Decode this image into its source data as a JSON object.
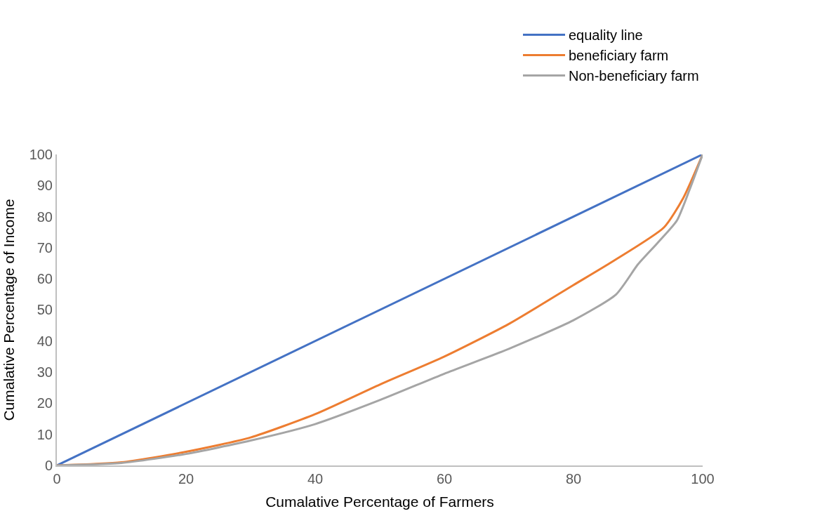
{
  "chart_data": {
    "type": "line",
    "xlabel": "Cumalative Percentage of Farmers",
    "ylabel": "Cumalative Percentage of Income",
    "xlim": [
      0,
      100
    ],
    "xticks": [
      0,
      20,
      40,
      60,
      80,
      100
    ],
    "ylim": [
      0,
      100
    ],
    "yticks": [
      0,
      10,
      20,
      30,
      40,
      50,
      60,
      70,
      80,
      90,
      100
    ],
    "grid": false,
    "legend": "top right",
    "marker": "none",
    "line_style": "solid",
    "series": [
      {
        "name": "equality line",
        "color": "#4472c4",
        "x": [
          0,
          100
        ],
        "values": [
          0,
          100
        ]
      },
      {
        "name": "beneficiary farm",
        "color": "#ed7d31",
        "x": [
          0,
          10,
          20,
          30,
          40,
          50,
          60,
          70,
          80,
          86,
          94,
          97,
          100
        ],
        "values": [
          0,
          1,
          4.4,
          9,
          16.5,
          26,
          35,
          45.5,
          58,
          65.5,
          76.5,
          86,
          100
        ]
      },
      {
        "name": "Non-beneficiary farm",
        "color": "#a5a5a5",
        "x": [
          0,
          10,
          20,
          30,
          40,
          50,
          60,
          70,
          80,
          86.6,
          90,
          93,
          96,
          98,
          100
        ],
        "values": [
          0,
          0.8,
          3.7,
          8,
          13.3,
          21,
          29.5,
          37.5,
          46.7,
          55,
          64.7,
          71.5,
          78.7,
          88.8,
          100
        ]
      }
    ]
  }
}
